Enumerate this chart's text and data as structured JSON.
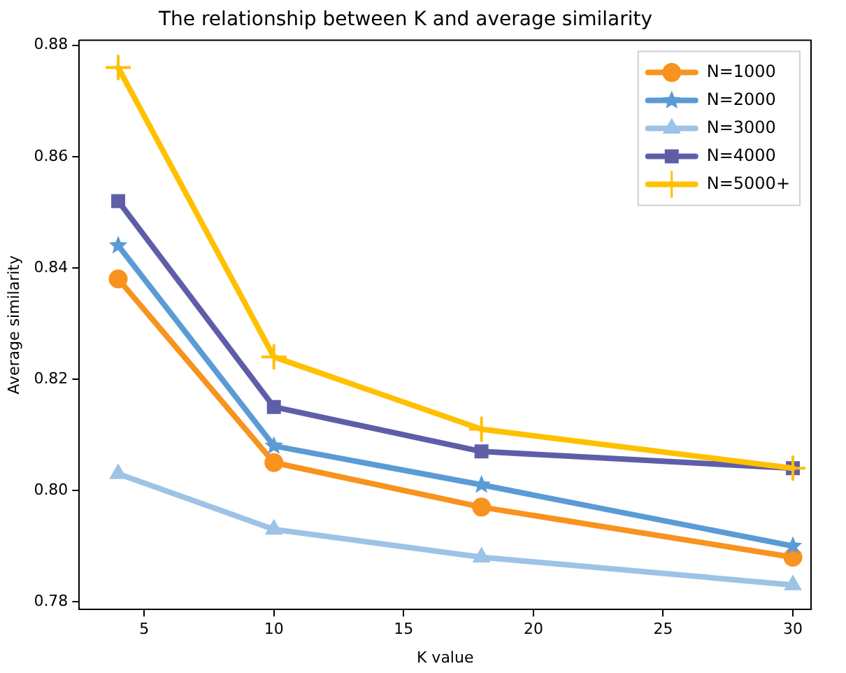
{
  "chart_data": {
    "type": "line",
    "title": "The relationship between K and average similarity",
    "xlabel": "K value",
    "ylabel": "Average similarity",
    "x": [
      4,
      10,
      18,
      30
    ],
    "series": [
      {
        "name": "N=1000",
        "color": "#f7931e",
        "marker": "circle",
        "values": [
          0.838,
          0.805,
          0.797,
          0.788
        ]
      },
      {
        "name": "N=2000",
        "color": "#5b9bd5",
        "marker": "star",
        "values": [
          0.844,
          0.808,
          0.801,
          0.79
        ]
      },
      {
        "name": "N=3000",
        "color": "#9dc3e6",
        "marker": "triangle",
        "values": [
          0.803,
          0.793,
          0.788,
          0.783
        ]
      },
      {
        "name": "N=4000",
        "color": "#5e5ea8",
        "marker": "square",
        "values": [
          0.852,
          0.815,
          0.807,
          0.804
        ]
      },
      {
        "name": "N=5000+",
        "color": "#ffc000",
        "marker": "cross",
        "values": [
          0.876,
          0.824,
          0.811,
          0.804
        ]
      }
    ],
    "xlim": [
      2.5,
      30.7
    ],
    "xticks": [
      5,
      10,
      15,
      20,
      25,
      30
    ],
    "ylim": [
      0.7786,
      0.8809
    ],
    "yticks": [
      {
        "value": 0.78,
        "label": "0.78"
      },
      {
        "value": 0.8,
        "label": "0.80"
      },
      {
        "value": 0.82,
        "label": "0.82"
      },
      {
        "value": 0.84,
        "label": "0.84"
      },
      {
        "value": 0.86,
        "label": "0.86"
      },
      {
        "value": 0.88,
        "label": "0.88"
      }
    ],
    "grid": false,
    "legend": "top right",
    "line_style": "solid"
  }
}
